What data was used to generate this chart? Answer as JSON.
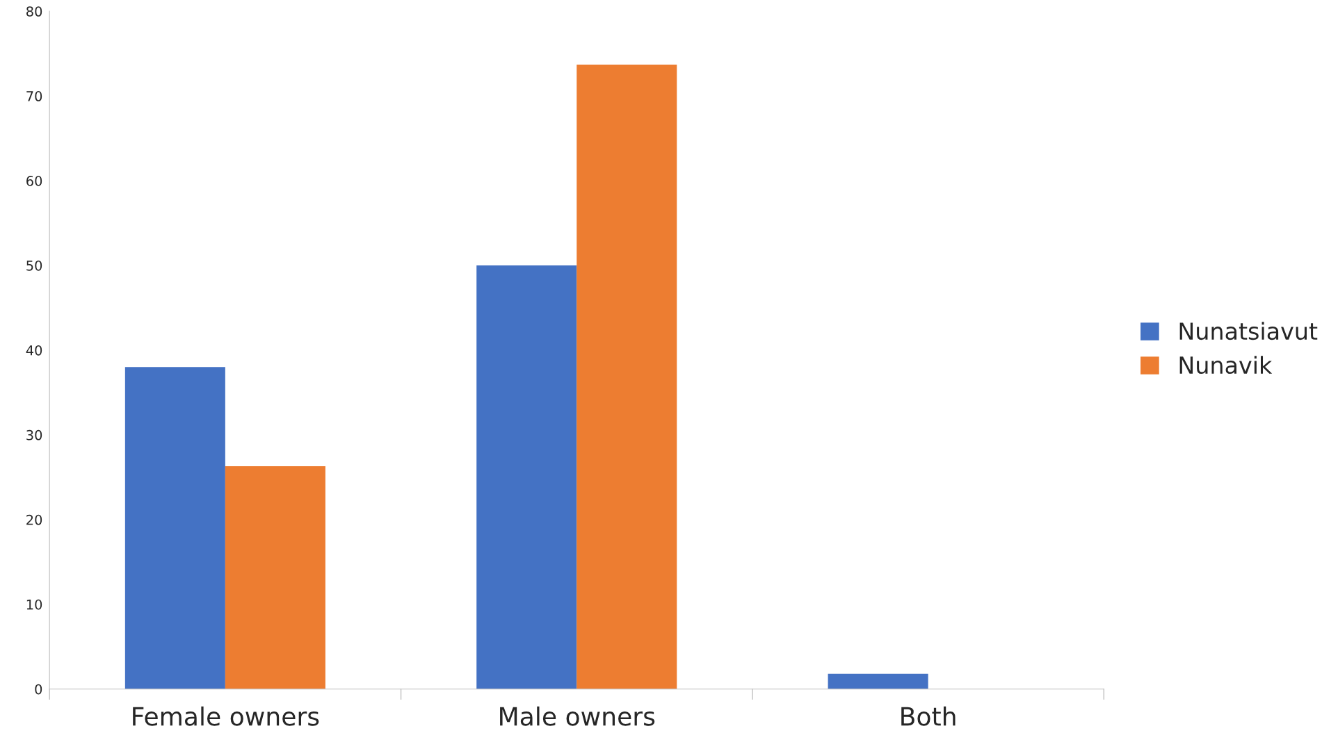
{
  "chart_data": {
    "type": "bar",
    "categories": [
      "Female owners",
      "Male owners",
      "Both"
    ],
    "series": [
      {
        "name": "Nunatsiavut",
        "color": "#4472c4",
        "values": [
          38,
          50,
          1.8
        ]
      },
      {
        "name": "Nunavik",
        "color": "#ed7d31",
        "values": [
          26.3,
          73.7,
          null
        ]
      }
    ],
    "ylim": [
      0,
      80
    ],
    "yticks": [
      0,
      10,
      20,
      30,
      40,
      50,
      60,
      70,
      80
    ],
    "grid": false,
    "legend": "right"
  }
}
